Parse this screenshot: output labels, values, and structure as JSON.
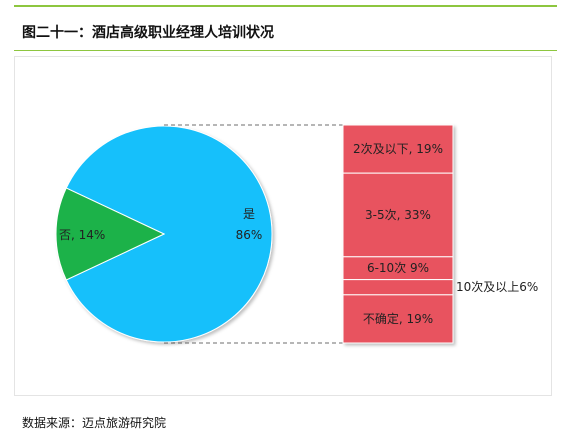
{
  "header": {
    "title": "图二十一：酒店高级职业经理人培训状况"
  },
  "footer": {
    "source": "数据来源：迈点旅游研究院"
  },
  "colors": {
    "pie_yes": "#14c0fb",
    "pie_no": "#1eb24a",
    "bar": "#e8525e",
    "accent_line": "#8dc63f"
  },
  "chart_data": {
    "type": "bar-of-pie",
    "pie": {
      "slices": [
        {
          "label": "是",
          "value": 86,
          "display": "86%"
        },
        {
          "label": "否",
          "value": 14,
          "display": "否, 14%"
        }
      ]
    },
    "bar": {
      "segments": [
        {
          "label": "2次及以下, 19%",
          "value": 19
        },
        {
          "label": "3-5次, 33%",
          "value": 33
        },
        {
          "label": "6-10次 9%",
          "value": 9
        },
        {
          "label": "10次及以上6%",
          "value": 6
        },
        {
          "label": "不确定, 19%",
          "value": 19
        }
      ]
    }
  }
}
